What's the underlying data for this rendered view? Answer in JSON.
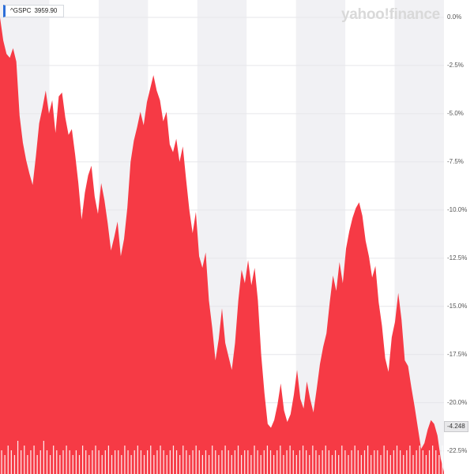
{
  "header": {
    "ticker": "^GSPC",
    "price": "3959.90",
    "logo": "yahoo!finance"
  },
  "last_badge": "-4.248",
  "colors": {
    "area": "#f63a45",
    "volume": "#ffffff",
    "band": "#f1f1f4",
    "grid": "#e6e6ea",
    "logo": "#d9d9d9"
  },
  "chart_data": {
    "type": "area",
    "title": "",
    "xlabel": "",
    "ylabel": "",
    "ylim": [
      -23.7,
      0.9
    ],
    "ticks": [
      "0.0%",
      "-2.5%",
      "-5.0%",
      "-7.5%",
      "-10.0%",
      "-12.5%",
      "-15.0%",
      "-17.5%",
      "-20.0%",
      "-22.5%"
    ],
    "tick_values": [
      0,
      -2.5,
      -5,
      -7.5,
      -10,
      -12.5,
      -15,
      -17.5,
      -20,
      -22.5
    ],
    "grid": true,
    "bands": 9,
    "series": [
      {
        "y": [
          0,
          -1.2,
          -1.9,
          -2.1,
          -1.6,
          -2.3,
          -5.1,
          -6.5,
          -7.4,
          -8.1,
          -8.7,
          -7.2,
          -5.5,
          -4.7,
          -3.8,
          -5.0,
          -4.3,
          -6.0,
          -4.1,
          -3.9,
          -5.2,
          -6.1,
          -5.8,
          -7.1,
          -8.6,
          -10.5,
          -9.1,
          -8.2,
          -7.7,
          -9.3,
          -10.2,
          -8.6,
          -9.5,
          -10.7,
          -12.1,
          -11.4,
          -10.6,
          -12.4,
          -11.5,
          -9.9,
          -7.5,
          -6.4,
          -5.7,
          -4.9,
          -5.6,
          -4.4,
          -3.7,
          -3.0,
          -3.8,
          -4.3,
          -5.4,
          -4.9,
          -6.6,
          -7.0,
          -6.3,
          -7.5,
          -6.7,
          -8.4,
          -10.0,
          -11.2,
          -10.1,
          -12.4,
          -13.0,
          -12.2,
          -14.7,
          -16.1,
          -17.8,
          -16.7,
          -15.1,
          -16.9,
          -17.6,
          -18.3,
          -16.9,
          -14.7,
          -13.1,
          -13.8,
          -12.6,
          -13.9,
          -13.0,
          -14.7,
          -17.5,
          -19.5,
          -21.1,
          -21.3,
          -20.9,
          -20.1,
          -19.0,
          -20.4,
          -21.0,
          -20.6,
          -19.6,
          -18.3,
          -19.8,
          -20.3,
          -18.9,
          -19.8,
          -20.5,
          -19.3,
          -18.0,
          -17.1,
          -16.4,
          -14.8,
          -13.4,
          -14.2,
          -12.7,
          -13.8,
          -12.0,
          -11.1,
          -10.4,
          -9.9,
          -9.6,
          -10.3,
          -11.6,
          -12.4,
          -13.5,
          -12.9,
          -14.8,
          -16.0,
          -17.7,
          -18.4,
          -16.6,
          -15.8,
          -14.3,
          -15.7,
          -17.8,
          -18.1,
          -19.2,
          -20.2,
          -21.3,
          -22.4,
          -22.1,
          -21.4,
          -20.9,
          -21.1,
          -21.7,
          -22.9,
          -23.6
        ]
      }
    ],
    "volume": [
      0.05,
      0.04,
      0.06,
      0.05,
      0.04,
      0.07,
      0.05,
      0.06,
      0.04,
      0.05,
      0.06,
      0.04,
      0.05,
      0.07,
      0.05,
      0.04,
      0.06,
      0.05,
      0.04,
      0.05,
      0.06,
      0.05,
      0.04,
      0.05,
      0.04,
      0.06,
      0.05,
      0.04,
      0.05,
      0.06,
      0.05,
      0.04,
      0.05,
      0.06,
      0.04,
      0.05,
      0.05,
      0.04,
      0.06,
      0.05,
      0.04,
      0.05,
      0.06,
      0.05,
      0.04,
      0.05,
      0.06,
      0.04,
      0.05,
      0.06,
      0.05,
      0.04,
      0.05,
      0.06,
      0.05,
      0.04,
      0.06,
      0.05,
      0.04,
      0.05,
      0.06,
      0.05,
      0.04,
      0.05,
      0.04,
      0.06,
      0.05,
      0.04,
      0.05,
      0.06,
      0.05,
      0.04,
      0.05,
      0.06,
      0.04,
      0.05,
      0.05,
      0.04,
      0.06,
      0.05,
      0.04,
      0.05,
      0.06,
      0.05,
      0.04,
      0.05,
      0.06,
      0.04,
      0.05,
      0.06,
      0.05,
      0.04,
      0.05,
      0.06,
      0.05,
      0.04,
      0.06,
      0.05,
      0.04,
      0.05,
      0.06,
      0.05,
      0.04,
      0.05,
      0.04,
      0.06,
      0.05,
      0.04,
      0.05,
      0.06,
      0.05,
      0.04,
      0.05,
      0.06,
      0.04,
      0.05,
      0.05,
      0.04,
      0.06,
      0.05,
      0.04,
      0.05,
      0.06,
      0.05,
      0.04,
      0.05,
      0.06,
      0.04,
      0.05,
      0.06,
      0.05,
      0.04,
      0.05,
      0.06,
      0.05,
      0.04,
      0.06
    ]
  }
}
